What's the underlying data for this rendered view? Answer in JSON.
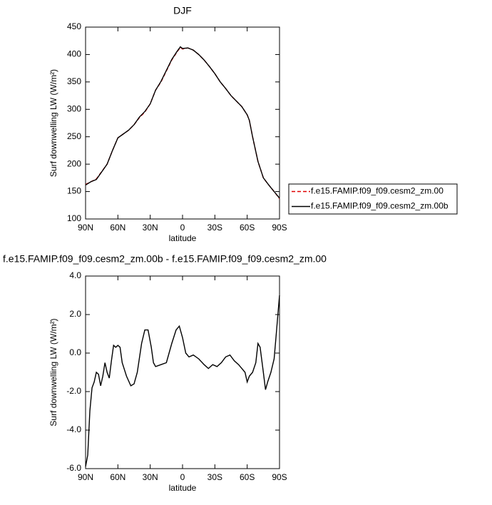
{
  "chart_data": [
    {
      "type": "line",
      "title": "DJF",
      "ylabel": "Surf downwelling LW (W/m²)",
      "xlabel": "latitude",
      "x": [
        90,
        85,
        80,
        70,
        65,
        60,
        55,
        50,
        45,
        40,
        35,
        30,
        25,
        20,
        15,
        10,
        5,
        2,
        0,
        -5,
        -10,
        -15,
        -20,
        -25,
        -30,
        -35,
        -40,
        -45,
        -50,
        -55,
        -60,
        -62,
        -65,
        -70,
        -75,
        -80,
        -85,
        -90
      ],
      "series": [
        {
          "name": "f.e15.FAMIP.f09_f09.cesm2_zm.00",
          "color": "#e00000",
          "line_style": "dashed",
          "values": [
            163,
            168,
            173,
            200,
            225,
            248,
            255,
            262,
            272,
            285,
            295,
            310,
            335,
            350,
            370,
            390,
            405,
            413,
            410,
            412,
            408,
            400,
            390,
            378,
            365,
            350,
            338,
            325,
            315,
            305,
            290,
            280,
            250,
            205,
            175,
            162,
            150,
            137
          ]
        },
        {
          "name": "f.e15.FAMIP.f09_f09.cesm2_zm.00b",
          "color": "#000000",
          "line_style": "solid",
          "values": [
            162,
            168,
            172,
            200,
            225,
            248,
            255,
            262,
            272,
            286,
            296,
            310,
            335,
            351,
            371,
            391,
            406,
            414,
            411,
            412,
            408,
            400,
            390,
            378,
            365,
            350,
            338,
            325,
            315,
            305,
            290,
            280,
            250,
            205,
            175,
            162,
            150,
            138
          ]
        }
      ],
      "xlim": [
        90,
        -90
      ],
      "xticks": [
        {
          "value": 90,
          "label": "90N"
        },
        {
          "value": 60,
          "label": "60N"
        },
        {
          "value": 30,
          "label": "30N"
        },
        0,
        {
          "value": -30,
          "label": "30S"
        },
        {
          "value": -60,
          "label": "60S"
        },
        {
          "value": -90,
          "label": "90S"
        }
      ],
      "ylim": [
        100,
        450
      ],
      "yticks": [
        100,
        150,
        200,
        250,
        300,
        350,
        400,
        450
      ],
      "legend_position": "right"
    },
    {
      "type": "line",
      "title": "f.e15.FAMIP.f09_f09.cesm2_zm.00b - f.e15.FAMIP.f09_f09.cesm2_zm.00",
      "ylabel": "Surf downwelling LW (W/m²)",
      "xlabel": "latitude",
      "x": [
        90,
        88,
        86,
        84,
        82,
        80,
        78,
        76,
        74,
        72,
        70,
        68,
        66,
        64,
        62,
        60,
        58,
        56,
        52,
        48,
        45,
        42,
        38,
        35,
        32,
        29,
        27,
        25,
        20,
        15,
        10,
        6,
        3,
        0,
        -3,
        -6,
        -10,
        -15,
        -20,
        -24,
        -28,
        -32,
        -36,
        -40,
        -44,
        -48,
        -52,
        -55,
        -58,
        -60,
        -62,
        -65,
        -68,
        -70,
        -72,
        -75,
        -77,
        -79,
        -82,
        -85,
        -87,
        -90
      ],
      "series": [
        {
          "color": "#000000",
          "line_style": "solid",
          "values": [
            -5.9,
            -5.3,
            -3.0,
            -1.8,
            -1.5,
            -1.0,
            -1.1,
            -1.7,
            -1.2,
            -0.5,
            -1.0,
            -1.3,
            -0.4,
            0.4,
            0.3,
            0.4,
            0.3,
            -0.5,
            -1.2,
            -1.7,
            -1.6,
            -1.0,
            0.5,
            1.2,
            1.2,
            0.3,
            -0.5,
            -0.7,
            -0.6,
            -0.5,
            0.5,
            1.2,
            1.4,
            0.8,
            0.0,
            -0.2,
            -0.1,
            -0.3,
            -0.6,
            -0.8,
            -0.6,
            -0.7,
            -0.5,
            -0.2,
            -0.1,
            -0.4,
            -0.6,
            -0.8,
            -1.0,
            -1.5,
            -1.2,
            -1.0,
            -0.5,
            0.5,
            0.3,
            -1.0,
            -1.9,
            -1.5,
            -1.0,
            -0.3,
            1.0,
            3.0
          ]
        }
      ],
      "xlim": [
        90,
        -90
      ],
      "xticks": [
        {
          "value": 90,
          "label": "90N"
        },
        {
          "value": 60,
          "label": "60N"
        },
        {
          "value": 30,
          "label": "30N"
        },
        0,
        {
          "value": -30,
          "label": "30S"
        },
        {
          "value": -60,
          "label": "60S"
        },
        {
          "value": -90,
          "label": "90S"
        }
      ],
      "ylim": [
        -6,
        4
      ],
      "yticks": [
        {
          "value": -6,
          "label": "-6.0"
        },
        {
          "value": -4,
          "label": "-4.0"
        },
        {
          "value": -2,
          "label": "-2.0"
        },
        {
          "value": 0,
          "label": "0.0"
        },
        {
          "value": 2,
          "label": "2.0"
        },
        {
          "value": 4,
          "label": "4.0"
        }
      ]
    }
  ]
}
